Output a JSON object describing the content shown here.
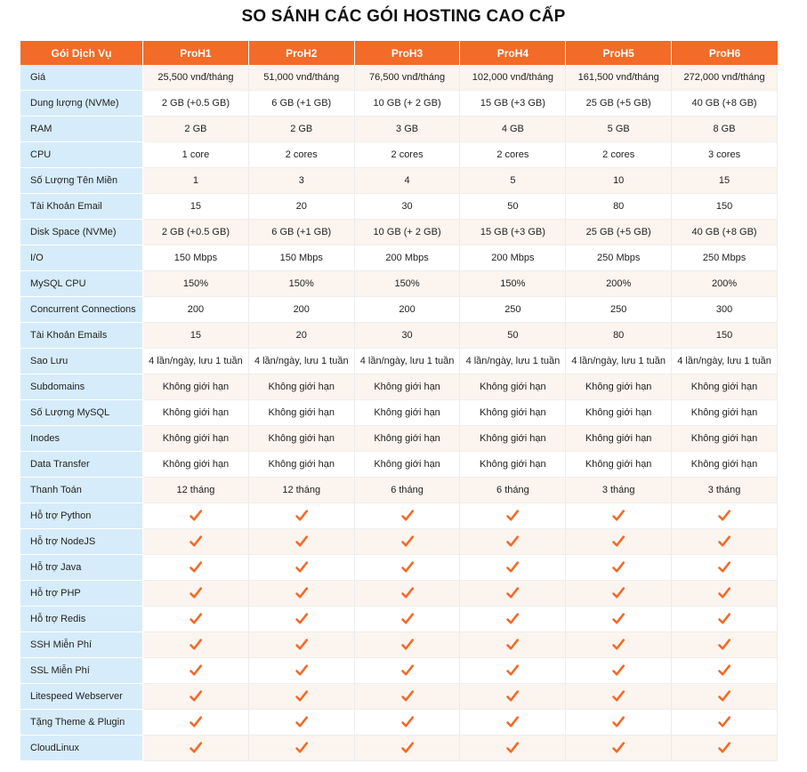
{
  "title": "SO SÁNH CÁC GÓI HOSTING CAO CẤP",
  "colors": {
    "header_bg": "#f26b29",
    "label_bg": "#d6ecfa",
    "stripe_bg": "#fcf4ee",
    "check": "#f26b29"
  },
  "header": [
    "Gói Dịch Vụ",
    "ProH1",
    "ProH2",
    "ProH3",
    "ProH4",
    "ProH5",
    "ProH6"
  ],
  "rows": [
    {
      "label": "Giá",
      "values": [
        "25,500 vnđ/tháng",
        "51,000 vnđ/tháng",
        "76,500 vnđ/tháng",
        "102,000 vnđ/tháng",
        "161,500 vnđ/tháng",
        "272,000 vnđ/tháng"
      ]
    },
    {
      "label": "Dung lượng (NVMe)",
      "values": [
        "2 GB (+0.5 GB)",
        "6 GB (+1 GB)",
        "10 GB (+ 2 GB)",
        "15 GB (+3 GB)",
        "25 GB (+5 GB)",
        "40 GB (+8 GB)"
      ]
    },
    {
      "label": "RAM",
      "values": [
        "2 GB",
        "2 GB",
        "3 GB",
        "4 GB",
        "5 GB",
        "8 GB"
      ]
    },
    {
      "label": "CPU",
      "values": [
        "1 core",
        "2 cores",
        "2 cores",
        "2 cores",
        "2 cores",
        "3 cores"
      ]
    },
    {
      "label": "Số Lượng Tên Miền",
      "values": [
        "1",
        "3",
        "4",
        "5",
        "10",
        "15"
      ]
    },
    {
      "label": "Tài Khoản Email",
      "values": [
        "15",
        "20",
        "30",
        "50",
        "80",
        "150"
      ]
    },
    {
      "label": "Disk Space (NVMe)",
      "values": [
        "2 GB (+0.5 GB)",
        "6 GB (+1 GB)",
        "10 GB (+ 2 GB)",
        "15 GB (+3 GB)",
        "25 GB (+5 GB)",
        "40 GB (+8 GB)"
      ]
    },
    {
      "label": "I/O",
      "values": [
        "150 Mbps",
        "150 Mbps",
        "200 Mbps",
        "200 Mbps",
        "250 Mbps",
        "250 Mbps"
      ]
    },
    {
      "label": "MySQL CPU",
      "values": [
        "150%",
        "150%",
        "150%",
        "150%",
        "200%",
        "200%"
      ]
    },
    {
      "label": "Concurrent Connections",
      "values": [
        "200",
        "200",
        "200",
        "250",
        "250",
        "300"
      ]
    },
    {
      "label": "Tài Khoản Emails",
      "values": [
        "15",
        "20",
        "30",
        "50",
        "80",
        "150"
      ]
    },
    {
      "label": "Sao Lưu",
      "values": [
        "4 lần/ngày, lưu 1 tuần",
        "4 lần/ngày, lưu 1 tuần",
        "4 lần/ngày, lưu 1 tuần",
        "4 lần/ngày, lưu 1 tuần",
        "4 lần/ngày, lưu 1 tuần",
        "4 lần/ngày, lưu 1 tuần"
      ]
    },
    {
      "label": "Subdomains",
      "values": [
        "Không giới hạn",
        "Không giới hạn",
        "Không giới hạn",
        "Không giới hạn",
        "Không giới hạn",
        "Không giới hạn"
      ]
    },
    {
      "label": "Số Lượng MySQL",
      "values": [
        "Không giới hạn",
        "Không giới hạn",
        "Không giới hạn",
        "Không giới hạn",
        "Không giới hạn",
        "Không giới hạn"
      ]
    },
    {
      "label": "Inodes",
      "values": [
        "Không giới hạn",
        "Không giới hạn",
        "Không giới hạn",
        "Không giới hạn",
        "Không giới hạn",
        "Không giới hạn"
      ]
    },
    {
      "label": "Data Transfer",
      "values": [
        "Không giới hạn",
        "Không giới hạn",
        "Không giới hạn",
        "Không giới hạn",
        "Không giới hạn",
        "Không giới hạn"
      ]
    },
    {
      "label": "Thanh Toán",
      "values": [
        "12 tháng",
        "12 tháng",
        "6 tháng",
        "6 tháng",
        "3 tháng",
        "3 tháng"
      ]
    },
    {
      "label": "Hỗ trợ Python",
      "check": true
    },
    {
      "label": "Hỗ trợ NodeJS",
      "check": true
    },
    {
      "label": "Hỗ trợ Java",
      "check": true
    },
    {
      "label": "Hỗ trợ PHP",
      "check": true
    },
    {
      "label": "Hỗ trợ Redis",
      "check": true
    },
    {
      "label": "SSH Miễn Phí",
      "check": true
    },
    {
      "label": "SSL Miễn Phí",
      "check": true
    },
    {
      "label": "Litespeed Webserver",
      "check": true
    },
    {
      "label": "Tặng Theme & Plugin",
      "check": true
    },
    {
      "label": "CloudLinux",
      "check": true
    }
  ]
}
